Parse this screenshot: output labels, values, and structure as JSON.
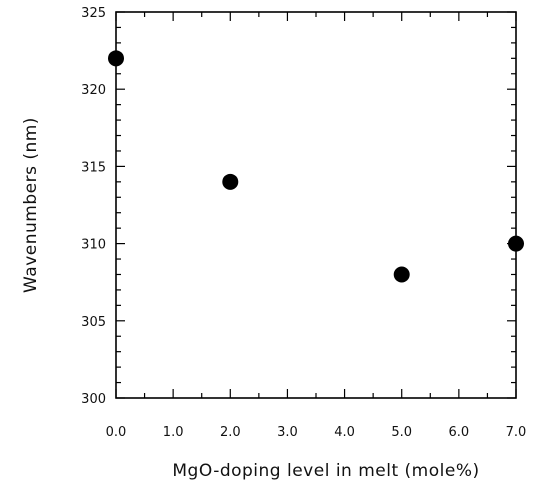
{
  "chart_data": {
    "type": "scatter",
    "title": "",
    "xlabel": "MgO-doping level in melt (mole%)",
    "ylabel": "Wavenumbers (nm)",
    "xlim": [
      0,
      7
    ],
    "ylim": [
      300,
      325
    ],
    "x_ticks": [
      "0.0",
      "1.0",
      "2.0",
      "3.0",
      "4.0",
      "5.0",
      "6.0",
      "7.0"
    ],
    "y_ticks": [
      "300",
      "305",
      "310",
      "315",
      "320",
      "325"
    ],
    "grid": false,
    "legend": "none",
    "marker_color": "#000000",
    "series": [
      {
        "x": [
          0.0,
          2.0,
          5.0,
          7.0
        ],
        "y": [
          322,
          314,
          308,
          310
        ]
      }
    ]
  }
}
